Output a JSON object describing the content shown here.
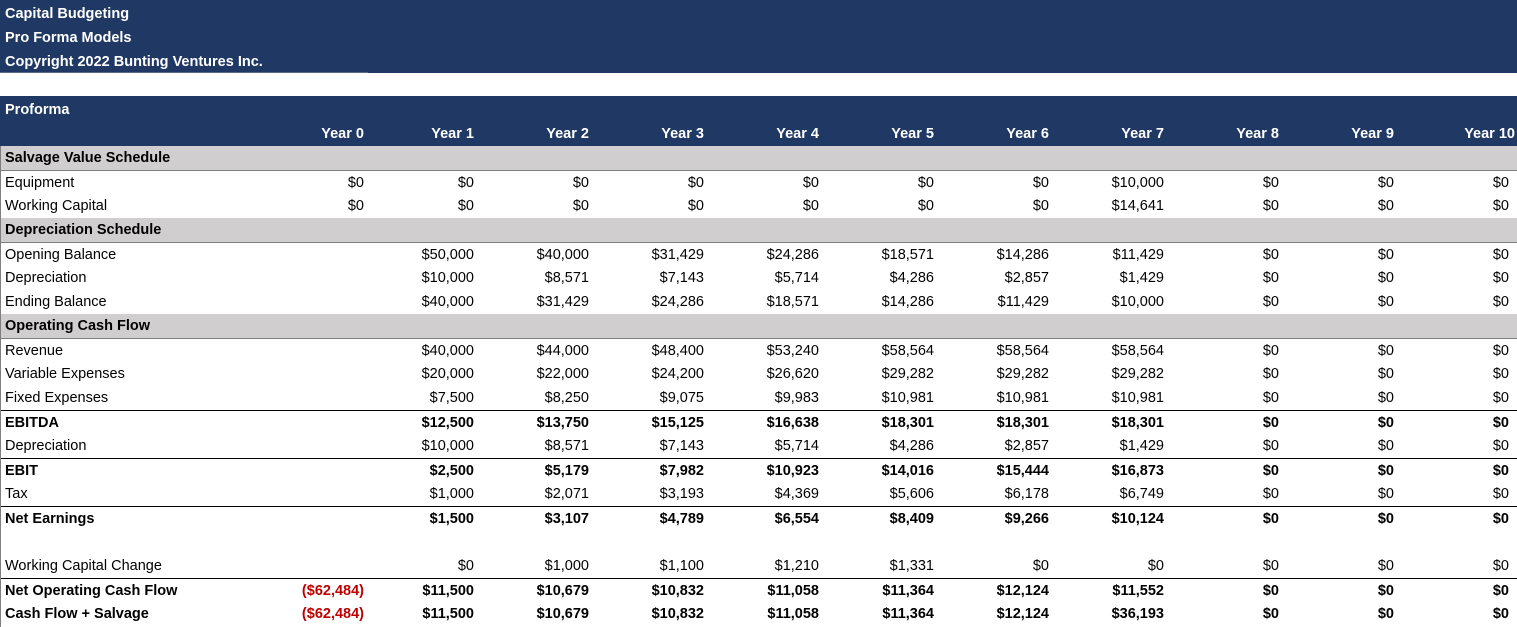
{
  "header": {
    "line1": "Capital Budgeting",
    "line2": "Pro Forma Models",
    "line3": "Copyright 2022 Bunting Ventures Inc."
  },
  "proforma": {
    "title": "Proforma",
    "years": [
      "Year 0",
      "Year 1",
      "Year 2",
      "Year 3",
      "Year 4",
      "Year 5",
      "Year 6",
      "Year 7",
      "Year 8",
      "Year 9",
      "Year 10"
    ]
  },
  "colors": {
    "header_bg": "#203864",
    "section_bg": "#d0cece",
    "negative": "#c00000"
  },
  "rows": [
    {
      "id": "salvage-value-schedule",
      "label": "Salvage Value Schedule",
      "type": "section",
      "values": [
        "",
        "",
        "",
        "",
        "",
        "",
        "",
        "",
        "",
        "",
        ""
      ]
    },
    {
      "id": "equipment",
      "label": "Equipment",
      "values": [
        "$0",
        "$0",
        "$0",
        "$0",
        "$0",
        "$0",
        "$0",
        "$10,000",
        "$0",
        "$0",
        "$0"
      ]
    },
    {
      "id": "working-capital",
      "label": "Working Capital",
      "values": [
        "$0",
        "$0",
        "$0",
        "$0",
        "$0",
        "$0",
        "$0",
        "$14,641",
        "$0",
        "$0",
        "$0"
      ]
    },
    {
      "id": "depreciation-schedule",
      "label": "Depreciation Schedule",
      "type": "section",
      "values": [
        "",
        "",
        "",
        "",
        "",
        "",
        "",
        "",
        "",
        "",
        ""
      ]
    },
    {
      "id": "opening-balance",
      "label": "Opening Balance",
      "values": [
        "",
        "$50,000",
        "$40,000",
        "$31,429",
        "$24,286",
        "$18,571",
        "$14,286",
        "$11,429",
        "$0",
        "$0",
        "$0"
      ]
    },
    {
      "id": "depreciation-1",
      "label": "Depreciation",
      "values": [
        "",
        "$10,000",
        "$8,571",
        "$7,143",
        "$5,714",
        "$4,286",
        "$2,857",
        "$1,429",
        "$0",
        "$0",
        "$0"
      ]
    },
    {
      "id": "ending-balance",
      "label": "Ending Balance",
      "values": [
        "",
        "$40,000",
        "$31,429",
        "$24,286",
        "$18,571",
        "$14,286",
        "$11,429",
        "$10,000",
        "$0",
        "$0",
        "$0"
      ]
    },
    {
      "id": "operating-cash-flow",
      "label": "Operating Cash Flow",
      "type": "section",
      "values": [
        "",
        "",
        "",
        "",
        "",
        "",
        "",
        "",
        "",
        "",
        ""
      ]
    },
    {
      "id": "revenue",
      "label": "Revenue",
      "values": [
        "",
        "$40,000",
        "$44,000",
        "$48,400",
        "$53,240",
        "$58,564",
        "$58,564",
        "$58,564",
        "$0",
        "$0",
        "$0"
      ]
    },
    {
      "id": "variable-expenses",
      "label": "Variable Expenses",
      "values": [
        "",
        "$20,000",
        "$22,000",
        "$24,200",
        "$26,620",
        "$29,282",
        "$29,282",
        "$29,282",
        "$0",
        "$0",
        "$0"
      ]
    },
    {
      "id": "fixed-expenses",
      "label": "Fixed Expenses",
      "values": [
        "",
        "$7,500",
        "$8,250",
        "$9,075",
        "$9,983",
        "$10,981",
        "$10,981",
        "$10,981",
        "$0",
        "$0",
        "$0"
      ]
    },
    {
      "id": "ebitda",
      "label": "EBITDA",
      "type": "bold",
      "values": [
        "",
        "$12,500",
        "$13,750",
        "$15,125",
        "$16,638",
        "$18,301",
        "$18,301",
        "$18,301",
        "$0",
        "$0",
        "$0"
      ]
    },
    {
      "id": "depreciation-2",
      "label": "Depreciation",
      "values": [
        "",
        "$10,000",
        "$8,571",
        "$7,143",
        "$5,714",
        "$4,286",
        "$2,857",
        "$1,429",
        "$0",
        "$0",
        "$0"
      ]
    },
    {
      "id": "ebit",
      "label": "EBIT",
      "type": "bold",
      "values": [
        "",
        "$2,500",
        "$5,179",
        "$7,982",
        "$10,923",
        "$14,016",
        "$15,444",
        "$16,873",
        "$0",
        "$0",
        "$0"
      ]
    },
    {
      "id": "tax",
      "label": "Tax",
      "values": [
        "",
        "$1,000",
        "$2,071",
        "$3,193",
        "$4,369",
        "$5,606",
        "$6,178",
        "$6,749",
        "$0",
        "$0",
        "$0"
      ]
    },
    {
      "id": "net-earnings",
      "label": "Net Earnings",
      "type": "bold",
      "values": [
        "",
        "$1,500",
        "$3,107",
        "$4,789",
        "$6,554",
        "$8,409",
        "$9,266",
        "$10,124",
        "$0",
        "$0",
        "$0"
      ]
    },
    {
      "id": "blank",
      "label": "",
      "values": [
        "",
        "",
        "",
        "",
        "",
        "",
        "",
        "",
        "",
        "",
        ""
      ]
    },
    {
      "id": "working-capital-change",
      "label": "Working Capital Change",
      "values": [
        "",
        "$0",
        "$1,000",
        "$1,100",
        "$1,210",
        "$1,331",
        "$0",
        "$0",
        "$0",
        "$0",
        "$0"
      ]
    },
    {
      "id": "net-operating-cash-flow",
      "label": "Net Operating Cash Flow",
      "type": "bold",
      "values": [
        "($62,484)",
        "$11,500",
        "$10,679",
        "$10,832",
        "$11,058",
        "$11,364",
        "$12,124",
        "$11,552",
        "$0",
        "$0",
        "$0"
      ]
    },
    {
      "id": "cash-flow-salvage",
      "label": "Cash Flow + Salvage",
      "type": "bold",
      "values": [
        "($62,484)",
        "$11,500",
        "$10,679",
        "$10,832",
        "$11,058",
        "$11,364",
        "$12,124",
        "$36,193",
        "$0",
        "$0",
        "$0"
      ]
    }
  ]
}
